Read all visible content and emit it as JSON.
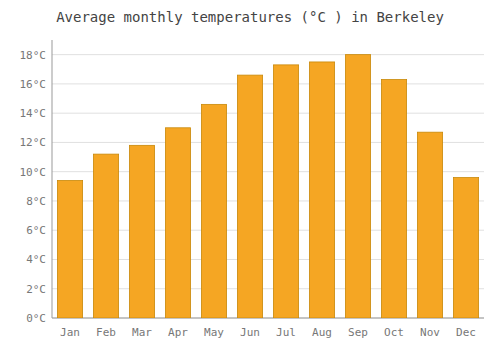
{
  "chart_data": {
    "type": "bar",
    "title": "Average monthly temperatures (°C ) in Berkeley",
    "categories": [
      "Jan",
      "Feb",
      "Mar",
      "Apr",
      "May",
      "Jun",
      "Jul",
      "Aug",
      "Sep",
      "Oct",
      "Nov",
      "Dec"
    ],
    "values": [
      9.4,
      11.2,
      11.8,
      13.0,
      14.6,
      16.6,
      17.3,
      17.5,
      18.0,
      16.3,
      12.7,
      9.6
    ],
    "color": "#F5A623",
    "ylim": [
      0,
      19
    ],
    "yticks": [
      {
        "value": 0,
        "label": "0°C"
      },
      {
        "value": 2,
        "label": "2°C"
      },
      {
        "value": 4,
        "label": "4°C"
      },
      {
        "value": 6,
        "label": "6°C"
      },
      {
        "value": 8,
        "label": "8°C"
      },
      {
        "value": 10,
        "label": "10°C"
      },
      {
        "value": 12,
        "label": "12°C"
      },
      {
        "value": 14,
        "label": "14°C"
      },
      {
        "value": 16,
        "label": "16°C"
      },
      {
        "value": 18,
        "label": "18°C"
      }
    ],
    "grid": true
  }
}
